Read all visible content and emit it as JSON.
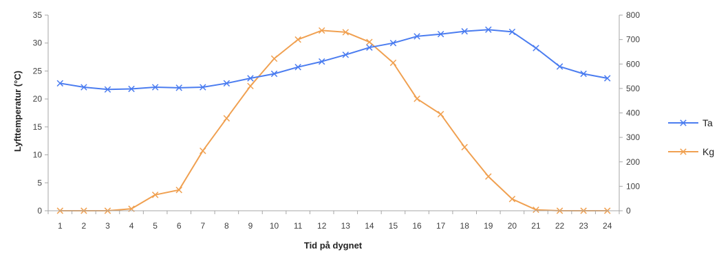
{
  "chart_data": {
    "type": "line",
    "xlabel": "Tid på dygnet",
    "ylabel": "Lyfttemperatur (°C)",
    "y2label": "",
    "categories": [
      "1",
      "2",
      "3",
      "4",
      "5",
      "6",
      "7",
      "8",
      "9",
      "10",
      "11",
      "12",
      "13",
      "14",
      "15",
      "16",
      "17",
      "18",
      "19",
      "20",
      "21",
      "22",
      "23",
      "24"
    ],
    "ylim": [
      0,
      35
    ],
    "yticks": [
      0,
      5,
      10,
      15,
      20,
      25,
      30,
      35
    ],
    "y2lim": [
      0,
      800
    ],
    "y2ticks": [
      0,
      100,
      200,
      300,
      400,
      500,
      600,
      700,
      800
    ],
    "grid": false,
    "legend_position": "right",
    "series": [
      {
        "name": "Ta",
        "axis": "left",
        "color": "#4a7cf0",
        "marker": "x",
        "values": [
          22.8,
          22.1,
          21.7,
          21.8,
          22.1,
          22.0,
          22.1,
          22.8,
          23.7,
          24.5,
          25.7,
          26.7,
          27.9,
          29.2,
          30.0,
          31.2,
          31.6,
          32.1,
          32.4,
          32.0,
          29.1,
          25.8,
          24.5,
          23.7
        ]
      },
      {
        "name": "Kg",
        "axis": "right",
        "color": "#f0a050",
        "marker": "x",
        "values": [
          0,
          0,
          0,
          8,
          65,
          85,
          245,
          378,
          510,
          622,
          700,
          737,
          730,
          690,
          605,
          458,
          395,
          260,
          140,
          48,
          4,
          0,
          0,
          0
        ]
      }
    ]
  }
}
